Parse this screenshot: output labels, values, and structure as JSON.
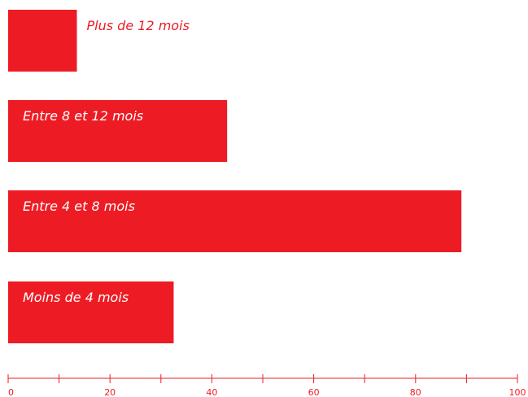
{
  "chart_data": {
    "type": "bar",
    "orientation": "horizontal",
    "categories": [
      "Plus de 12 mois",
      "Entre 8 et 12 mois",
      "Entre 4 et 8 mois",
      "Moins de 4 mois"
    ],
    "values": [
      13.5,
      43,
      89,
      32.5
    ],
    "xlim": [
      0,
      100
    ],
    "x_ticks": [
      0,
      20,
      40,
      60,
      80,
      100
    ],
    "x_minor_ticks": [
      10,
      30,
      50,
      70,
      90
    ],
    "grid": false,
    "legend": "none",
    "colors": {
      "bar": "#ed1c24",
      "axis": "#ed1c24",
      "label_inside": "#ffffff",
      "label_outside": "#ed1c24"
    }
  }
}
